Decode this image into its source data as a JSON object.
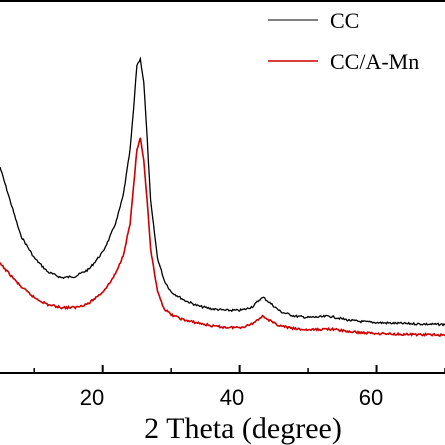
{
  "chart_data": {
    "type": "line",
    "xlabel": "2 Theta (degree)",
    "ylabel": "",
    "xlim": [
      5,
      70
    ],
    "xticks": [
      20,
      40,
      60
    ],
    "tick_labels": [
      "20",
      "40",
      "60"
    ],
    "y_tick_labels_shown": false,
    "grid": false,
    "legend_position": "top-right",
    "series": [
      {
        "name": "CC",
        "color": "#000000",
        "x": [
          5,
          8,
          10,
          12,
          14,
          16,
          18,
          20,
          21,
          22,
          23,
          24,
          24.5,
          25,
          25.5,
          26,
          26.5,
          27,
          28,
          29,
          30,
          32,
          34,
          36,
          38,
          40,
          41,
          42,
          43,
          43.5,
          44,
          45,
          46,
          48,
          50,
          52,
          53,
          54,
          56,
          58,
          60,
          62,
          65,
          68,
          70
        ],
        "y": [
          0.62,
          0.38,
          0.3,
          0.25,
          0.23,
          0.235,
          0.26,
          0.32,
          0.37,
          0.43,
          0.52,
          0.68,
          0.82,
          0.98,
          1.0,
          0.92,
          0.72,
          0.5,
          0.3,
          0.22,
          0.18,
          0.15,
          0.13,
          0.12,
          0.115,
          0.115,
          0.12,
          0.13,
          0.155,
          0.16,
          0.15,
          0.13,
          0.11,
          0.095,
          0.09,
          0.092,
          0.095,
          0.09,
          0.08,
          0.075,
          0.072,
          0.07,
          0.068,
          0.066,
          0.065
        ]
      },
      {
        "name": "CC/A-Mn",
        "color": "#cc0000",
        "x": [
          5,
          8,
          10,
          12,
          14,
          16,
          18,
          20,
          21,
          22,
          23,
          24,
          24.5,
          25,
          25.5,
          26,
          26.5,
          27,
          28,
          29,
          30,
          32,
          34,
          36,
          38,
          40,
          41,
          42,
          43,
          43.5,
          44,
          45,
          46,
          48,
          50,
          52,
          53,
          54,
          56,
          58,
          60,
          62,
          65,
          68,
          70
        ],
        "y": [
          0.28,
          0.2,
          0.16,
          0.135,
          0.125,
          0.125,
          0.14,
          0.18,
          0.21,
          0.25,
          0.31,
          0.42,
          0.55,
          0.68,
          0.72,
          0.64,
          0.5,
          0.33,
          0.18,
          0.12,
          0.1,
          0.08,
          0.07,
          0.06,
          0.055,
          0.055,
          0.06,
          0.07,
          0.09,
          0.095,
          0.085,
          0.07,
          0.06,
          0.05,
          0.046,
          0.048,
          0.05,
          0.047,
          0.04,
          0.036,
          0.034,
          0.032,
          0.03,
          0.029,
          0.028
        ]
      }
    ],
    "ylim": [
      0,
      1.05
    ]
  }
}
